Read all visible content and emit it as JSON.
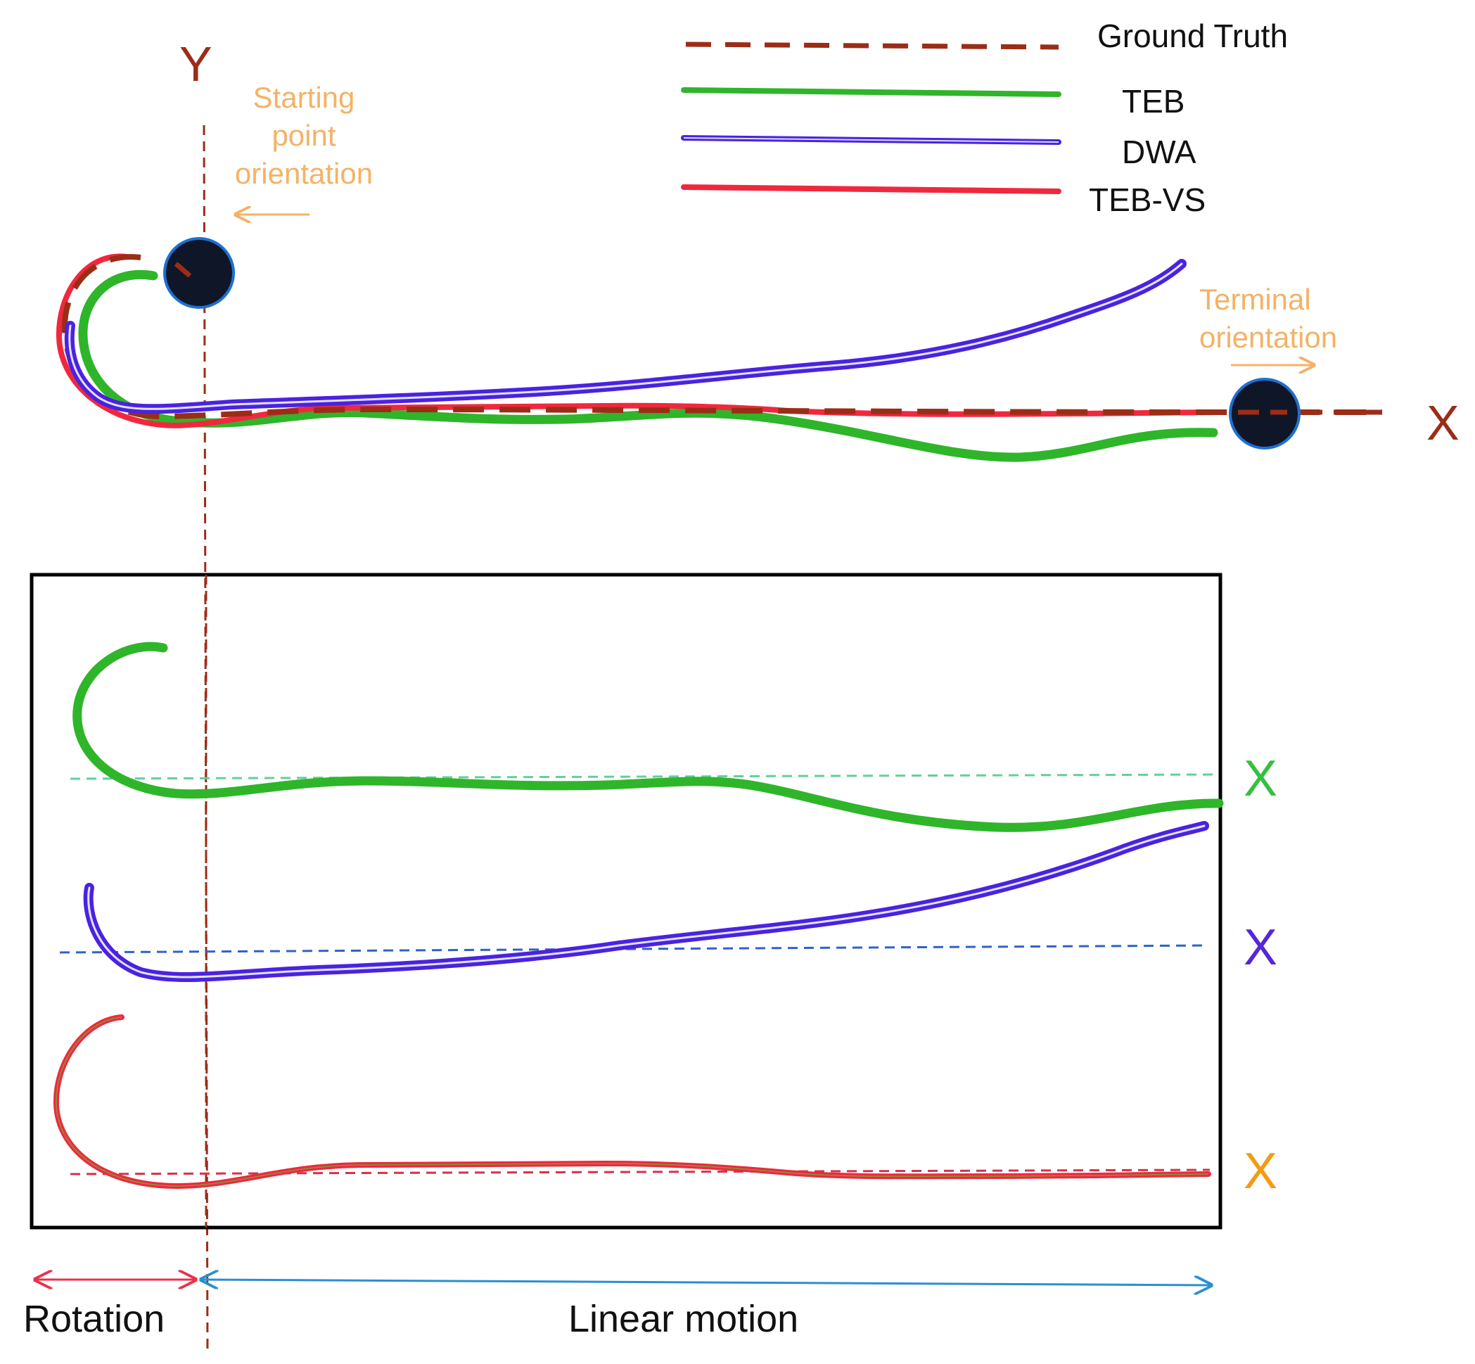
{
  "legend": {
    "ground_truth": "Ground Truth",
    "teb": "TEB",
    "dwa": "DWA",
    "teb_vs": "TEB-VS"
  },
  "axes": {
    "y_label": "Y",
    "x_label": "X"
  },
  "annotations": {
    "start_orientation": [
      "Starting",
      "point",
      "orientation"
    ],
    "terminal_orientation": [
      "Terminal",
      "orientation"
    ]
  },
  "panel": {
    "teb_axis_label": "X",
    "dwa_axis_label": "X",
    "teb_vs_axis_label": "X"
  },
  "bottom": {
    "rotation": "Rotation",
    "linear_motion": "Linear motion"
  },
  "colors": {
    "ground_truth": "#9b2d17",
    "teb": "#2fb52a",
    "dwa": "#4b22e0",
    "teb_vs": "#f0283e",
    "annotation": "#f4b266",
    "teb_axis": "#34c040",
    "dwa_axis": "#5527d6",
    "teb_vs_axis": "#f49b14",
    "rotation_arrow": "#e9314a",
    "linear_arrow": "#2a8fd0"
  }
}
